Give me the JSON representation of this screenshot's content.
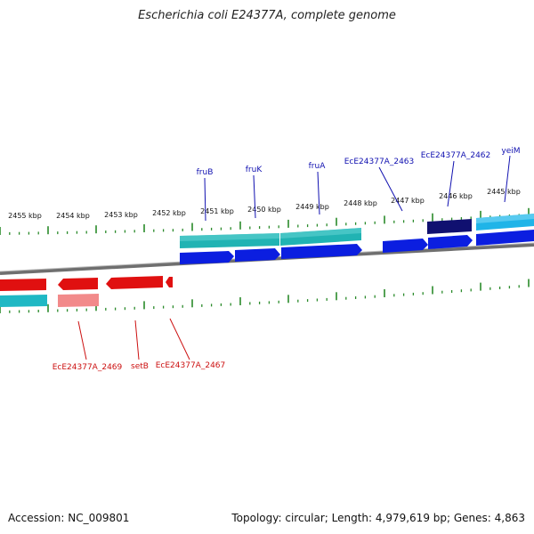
{
  "title": "Escherichia coli E24377A, complete genome",
  "accession": "Accession: NC_009801",
  "summary": "Topology: circular; Length: 4,979,619 bp; Genes: 4,863",
  "colors": {
    "backbone": "#7a7a7a",
    "tick": "#2a8a2a",
    "forward_gene": "#0b1ee0",
    "forward_cds_teal": "#21b3b3",
    "forward_dark": "#101070",
    "forward_cyan": "#1fb4e8",
    "reverse_gene": "#e01010",
    "reverse_pink": "#f28a8a",
    "reverse_teal": "#1fb8c4",
    "label_forward": "#1010b0",
    "label_reverse": "#cc1010"
  },
  "scale_labels": [
    "2455 kbp",
    "2454 kbp",
    "2453 kbp",
    "2452 kbp",
    "2451 kbp",
    "2450 kbp",
    "2449 kbp",
    "2448 kbp",
    "2447 kbp",
    "2446 kbp",
    "2445 kbp"
  ],
  "forward_labels": [
    "fruB",
    "fruK",
    "fruA",
    "EcE24377A_2463",
    "EcE24377A_2462",
    "yeiM"
  ],
  "reverse_labels": [
    "EcE24377A_2469",
    "setB",
    "EcE24377A_2467"
  ]
}
